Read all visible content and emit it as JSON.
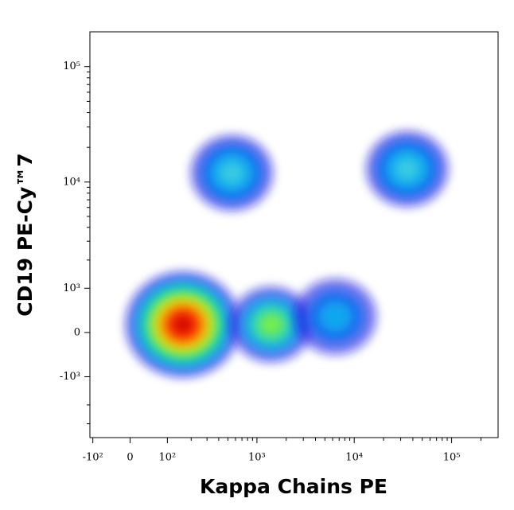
{
  "chart_data": {
    "type": "density",
    "x_label": "Kappa Chains PE",
    "y_label": "CD19 PE-Cy™7",
    "xscale": "biexponential",
    "yscale": "biexponential",
    "xlim": [
      -110,
      300000
    ],
    "ylim": [
      -4000,
      200000
    ],
    "xticks": [
      {
        "value": -100,
        "label": "-10²"
      },
      0,
      {
        "value": 100,
        "label": "10²"
      },
      {
        "value": 1000,
        "label": "10³"
      },
      {
        "value": 10000,
        "label": "10⁴"
      },
      {
        "value": 100000,
        "label": "10⁵"
      }
    ],
    "yticks": [
      {
        "value": -1000,
        "label": "-10³"
      },
      0,
      {
        "value": 1000,
        "label": "10³"
      },
      {
        "value": 10000,
        "label": "10⁴"
      },
      {
        "value": 100000,
        "label": "10⁵"
      }
    ],
    "populations": [
      {
        "x": 160,
        "y": 160,
        "colors": [
          "#1010e0",
          "#10a0f0",
          "#20e0a0",
          "#c0f020",
          "#ffb000",
          "#ff3000",
          "#d00000"
        ]
      },
      {
        "x": 1400,
        "y": 160,
        "colors": [
          "#1010e0",
          "#10a0f0",
          "#30e0b0",
          "#80f040"
        ]
      },
      {
        "x": 6400,
        "y": 320,
        "colors": [
          "#1010e0",
          "#1070f0",
          "#10b0f0"
        ]
      },
      {
        "x": 550,
        "y": 12000,
        "colors": [
          "#1010e0",
          "#1070f0",
          "#10b0f0",
          "#40d0e0"
        ]
      },
      {
        "x": 35000,
        "y": 13000,
        "colors": [
          "#1010e0",
          "#1070f0",
          "#10b0f0",
          "#40d0e0"
        ]
      }
    ]
  }
}
